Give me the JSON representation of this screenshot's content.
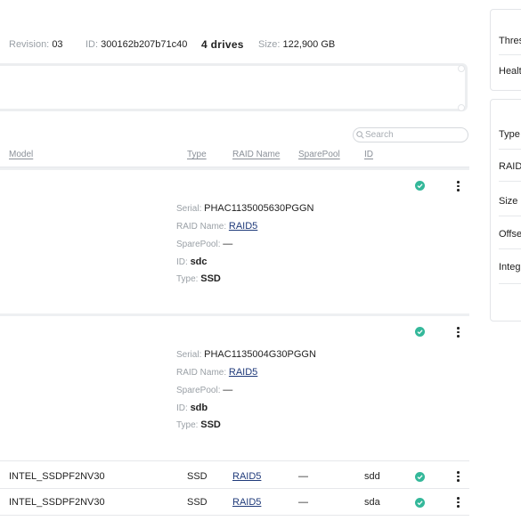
{
  "header": {
    "revision_label": "Revision:",
    "revision_value": "03",
    "id_label": "ID:",
    "id_value": "300162b207b71c40",
    "drives": "4 drives",
    "size_label": "Size:",
    "size_value": "122,900 GB"
  },
  "search": {
    "placeholder": "Search",
    "icon": "search-icon"
  },
  "table": {
    "columns": [
      "Model",
      "Type",
      "RAID Name",
      "SparePool",
      "ID"
    ],
    "expanded": [
      {
        "serial_label": "Serial:",
        "serial": "PHAC1135005630PGGN",
        "raid_label": "RAID Name:",
        "raid": "RAID5",
        "spare_label": "SparePool:",
        "spare": "—",
        "id_label": "ID:",
        "id": "sdc",
        "type_label": "Type:",
        "type": "SSD"
      },
      {
        "serial_label": "Serial:",
        "serial": "PHAC1135004G30PGGN",
        "raid_label": "RAID Name:",
        "raid": "RAID5",
        "spare_label": "SparePool:",
        "spare": "—",
        "id_label": "ID:",
        "id": "sdb",
        "type_label": "Type:",
        "type": "SSD"
      }
    ],
    "rows": [
      {
        "model": "INTEL_SSDPF2NV30",
        "type": "SSD",
        "raid": "RAID5",
        "spare": "—",
        "id": "sdd"
      },
      {
        "model": "INTEL_SSDPF2NV30",
        "type": "SSD",
        "raid": "RAID5",
        "spare": "—",
        "id": "sda"
      }
    ],
    "status_color": "#34b89a"
  },
  "side": {
    "top": [
      "Thres",
      "Healt"
    ],
    "bottom": [
      "Type",
      "RAID",
      "Size",
      "Offse",
      "Integ"
    ]
  }
}
